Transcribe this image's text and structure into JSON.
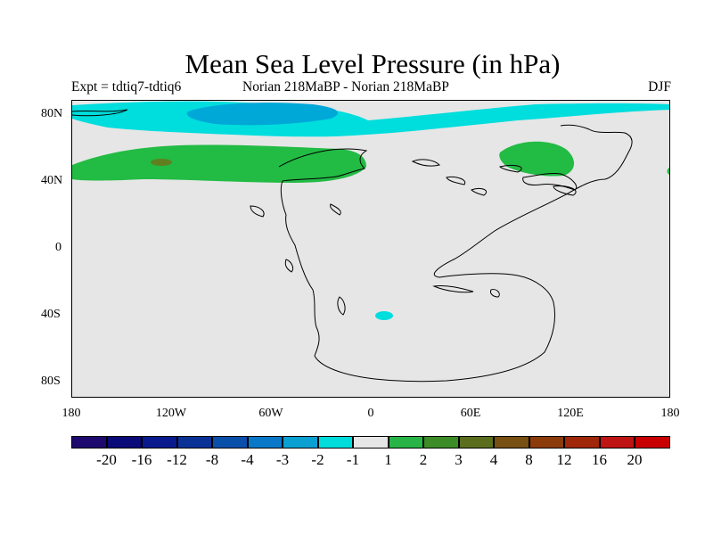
{
  "title": "Mean Sea Level Pressure (in hPa)",
  "subtitle_left": "Expt = tdtiq7-tdtiq6",
  "subtitle_center": "Norian   218MaBP - Norian   218MaBP",
  "subtitle_right": "DJF",
  "lat_labels": [
    "80N",
    "40N",
    "0",
    "40S",
    "80S"
  ],
  "lon_labels": [
    "180",
    "120W",
    "60W",
    "0",
    "60E",
    "120E",
    "180"
  ],
  "map": {
    "ocean_color": "#e6e6e6",
    "features": [
      {
        "name": "north-polar-low-belt",
        "color": "#00dddd",
        "value": -1
      },
      {
        "name": "north-polar-low-core",
        "color": "#00a8d8",
        "value": -2
      },
      {
        "name": "north-pacific-high-belt",
        "color": "#22bb44",
        "value": 1
      },
      {
        "name": "north-pacific-high-core",
        "color": "#608020",
        "value": 2
      },
      {
        "name": "east-asia-high",
        "color": "#22bb44",
        "value": 1
      },
      {
        "name": "south-atlantic-low",
        "color": "#00dddd",
        "value": -1
      }
    ]
  },
  "colorbar": {
    "colors": [
      "#1e0a6e",
      "#0a0a78",
      "#0a1a8c",
      "#0a3296",
      "#0a50aa",
      "#0a78c8",
      "#0aa0d2",
      "#00dcdc",
      "#e6e6e6",
      "#28b446",
      "#3c8c28",
      "#5a6e1e",
      "#785014",
      "#8c3c0a",
      "#a0280a",
      "#be1414",
      "#c80000"
    ],
    "labels": [
      "-20",
      "-16",
      "-12",
      "-8",
      "-4",
      "-3",
      "-2",
      "-1",
      "1",
      "2",
      "3",
      "4",
      "8",
      "12",
      "16",
      "20"
    ]
  }
}
